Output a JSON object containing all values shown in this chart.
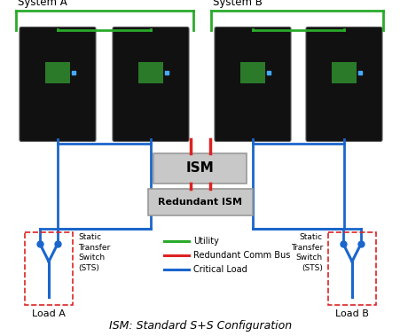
{
  "title": "ISM: Standard S+S Configuration",
  "title_fontsize": 9,
  "bg_color": "#ffffff",
  "system_a_label": "System A",
  "system_b_label": "System B",
  "ism_label": "ISM",
  "redundant_ism_label": "Redundant ISM",
  "load_a_label": "Load A",
  "load_b_label": "Load B",
  "sts_label": "Static\nTransfer\nSwitch\n(STS)",
  "legend_utility": "Utility",
  "legend_redundant": "Redundant Comm Bus",
  "legend_critical": "Critical Load",
  "color_green": "#2aaa2a",
  "color_red": "#dd2222",
  "color_blue": "#1a66cc",
  "color_ism_fill": "#c8c8c8",
  "color_ism_edge": "#999999",
  "color_ups_fill": "#111111",
  "figsize": [
    4.52,
    3.79
  ],
  "dpi": 100
}
